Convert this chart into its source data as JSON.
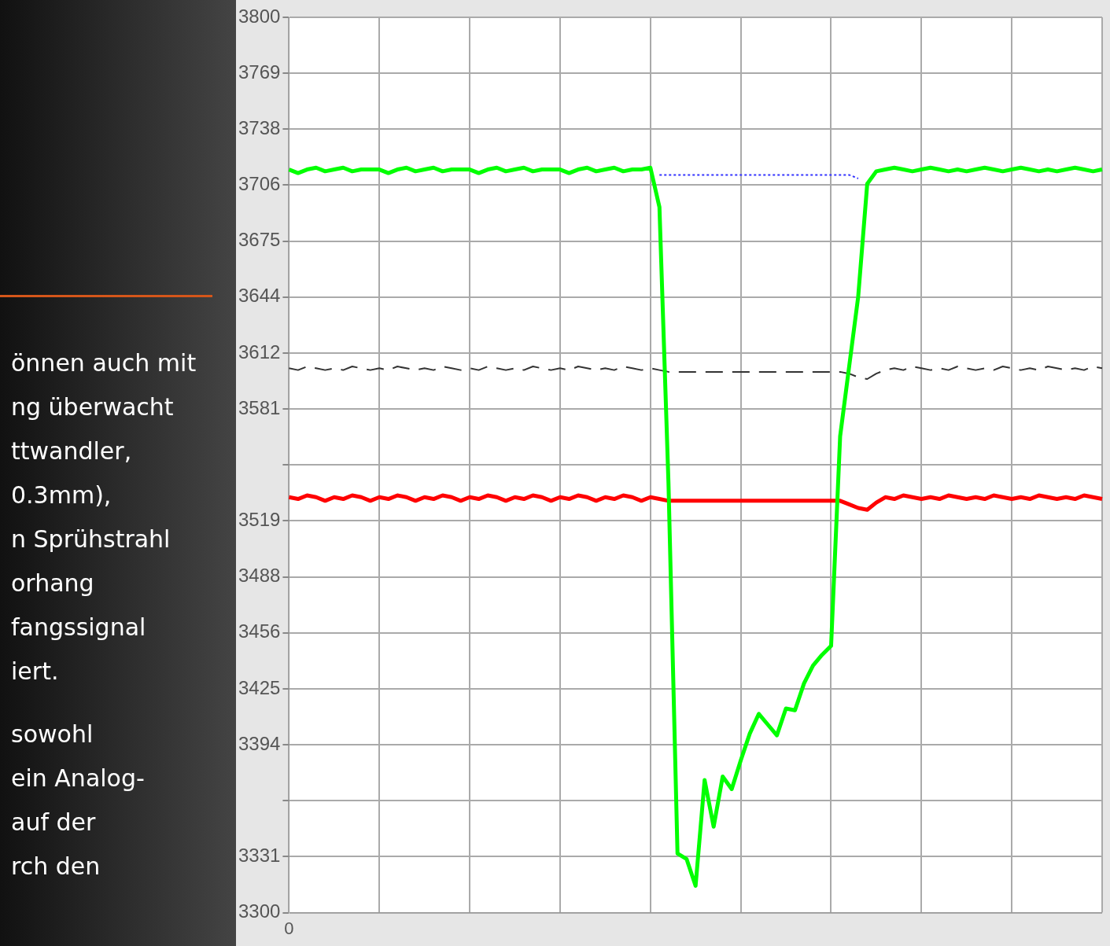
{
  "chart_data": {
    "type": "line",
    "categories": [
      "0",
      null,
      null,
      null,
      null,
      null,
      null,
      null,
      null,
      null,
      null,
      null,
      null,
      null,
      null,
      null,
      null,
      null,
      null,
      null,
      null,
      null,
      null,
      null,
      null,
      null,
      null,
      null,
      null,
      null,
      null,
      null,
      null,
      null,
      null,
      null,
      null,
      null,
      null,
      null,
      null,
      null,
      null,
      null,
      null,
      null,
      null,
      null,
      null,
      null,
      null,
      null,
      null,
      null,
      null,
      null,
      null,
      null,
      null,
      null,
      null,
      null,
      null,
      null,
      null,
      null,
      null,
      null,
      null,
      null,
      null,
      null,
      null,
      null,
      null,
      null,
      null,
      null,
      null,
      null,
      null,
      null,
      null,
      null,
      null,
      null,
      null,
      null,
      null,
      null,
      null
    ],
    "series": [
      {
        "color": "#00ff00",
        "line_style": "solid",
        "values": [
          3715,
          3713,
          3715,
          3716,
          3714,
          3715,
          3716,
          3714,
          3715,
          3715,
          3715,
          3713,
          3715,
          3716,
          3714,
          3715,
          3716,
          3714,
          3715,
          3715,
          3715,
          3713,
          3715,
          3716,
          3714,
          3715,
          3716,
          3714,
          3715,
          3715,
          3715,
          3713,
          3715,
          3716,
          3714,
          3715,
          3716,
          3714,
          3715,
          3715,
          3716,
          3694,
          3540,
          3333,
          3330,
          3315,
          3374,
          3348,
          3376,
          3369,
          3385,
          3400,
          3411,
          3405,
          3399,
          3414,
          3413,
          3428,
          3438,
          3444,
          3449,
          3566,
          3605,
          3644,
          3707,
          3714,
          3715,
          3716,
          3715,
          3714,
          3715,
          3716,
          3715,
          3714,
          3715,
          3714,
          3715,
          3716,
          3715,
          3714,
          3715,
          3716,
          3715,
          3714,
          3715,
          3714,
          3715,
          3716,
          3715,
          3714,
          3715
        ]
      },
      {
        "color": "#3333ff",
        "line_style": "dotted",
        "values": [
          null,
          null,
          null,
          null,
          null,
          null,
          null,
          null,
          null,
          null,
          null,
          null,
          null,
          null,
          null,
          null,
          null,
          null,
          null,
          null,
          null,
          null,
          null,
          null,
          null,
          null,
          null,
          null,
          null,
          null,
          null,
          null,
          null,
          null,
          null,
          null,
          null,
          null,
          null,
          null,
          null,
          3712,
          3712,
          3712,
          3712,
          3712,
          3712,
          3712,
          3712,
          3712,
          3712,
          3712,
          3712,
          3712,
          3712,
          3712,
          3712,
          3712,
          3712,
          3712,
          3712,
          3712,
          3712,
          3710,
          null,
          null,
          null,
          null,
          null,
          null,
          null,
          null,
          null,
          null,
          null,
          null,
          null,
          null,
          null,
          null,
          null,
          null,
          null,
          null,
          null,
          null,
          null,
          null,
          null,
          null,
          null
        ]
      },
      {
        "color": "#333333",
        "line_style": "dashed",
        "values": [
          3604,
          3603,
          3605,
          3604,
          3603,
          3604,
          3603,
          3605,
          3604,
          3603,
          3604,
          3603,
          3605,
          3604,
          3603,
          3604,
          3603,
          3605,
          3604,
          3603,
          3604,
          3603,
          3605,
          3604,
          3603,
          3604,
          3603,
          3605,
          3604,
          3603,
          3604,
          3603,
          3605,
          3604,
          3603,
          3604,
          3603,
          3605,
          3604,
          3603,
          3604,
          3603,
          3602,
          3602,
          3602,
          3602,
          3602,
          3602,
          3602,
          3602,
          3602,
          3602,
          3602,
          3602,
          3602,
          3602,
          3602,
          3602,
          3602,
          3602,
          3602,
          3602,
          3601,
          3599,
          3598,
          3601,
          3603,
          3604,
          3603,
          3605,
          3604,
          3603,
          3604,
          3603,
          3605,
          3604,
          3603,
          3604,
          3603,
          3605,
          3604,
          3603,
          3604,
          3603,
          3605,
          3604,
          3603,
          3604,
          3603,
          3605,
          3604
        ]
      },
      {
        "color": "#ff0000",
        "line_style": "solid",
        "values": [
          3532,
          3531,
          3533,
          3532,
          3530,
          3532,
          3531,
          3533,
          3532,
          3530,
          3532,
          3531,
          3533,
          3532,
          3530,
          3532,
          3531,
          3533,
          3532,
          3530,
          3532,
          3531,
          3533,
          3532,
          3530,
          3532,
          3531,
          3533,
          3532,
          3530,
          3532,
          3531,
          3533,
          3532,
          3530,
          3532,
          3531,
          3533,
          3532,
          3530,
          3532,
          3531,
          3530,
          3530,
          3530,
          3530,
          3530,
          3530,
          3530,
          3530,
          3530,
          3530,
          3530,
          3530,
          3530,
          3530,
          3530,
          3530,
          3530,
          3530,
          3530,
          3530,
          3528,
          3526,
          3525,
          3529,
          3532,
          3531,
          3533,
          3532,
          3531,
          3532,
          3531,
          3533,
          3532,
          3531,
          3532,
          3531,
          3533,
          3532,
          3531,
          3532,
          3531,
          3533,
          3532,
          3531,
          3532,
          3531,
          3533,
          3532,
          3531
        ]
      }
    ],
    "ylim": [
      3300,
      3800
    ],
    "yticks": [
      3800,
      {
        "value": 3768.75,
        "label": "3769"
      },
      {
        "value": 3737.5,
        "label": "3738"
      },
      {
        "value": 3706.25,
        "label": "3706"
      },
      3675,
      {
        "value": 3643.75,
        "label": "3644"
      },
      {
        "value": 3612.5,
        "label": "3612"
      },
      {
        "value": 3581.25,
        "label": "3581"
      },
      {
        "value": 3550,
        "label": null
      },
      {
        "value": 3518.75,
        "label": "3519"
      },
      {
        "value": 3487.5,
        "label": "3488"
      },
      {
        "value": 3456.25,
        "label": "3456"
      },
      3425,
      {
        "value": 3393.75,
        "label": "3394"
      },
      {
        "value": 3362.5,
        "label": null
      },
      {
        "value": 3331.25,
        "label": "3331"
      },
      3300
    ],
    "grid": true,
    "legend": false,
    "marker": "none",
    "annotations": [
      "önnen auch mit",
      "ng überwacht",
      "ttwandler,",
      "0.3mm),",
      "n Sprühstrahl",
      "orhang",
      "fangssignal",
      "iert.",
      "sowohl",
      "ein Analog-",
      "auf der",
      "rch den"
    ]
  }
}
